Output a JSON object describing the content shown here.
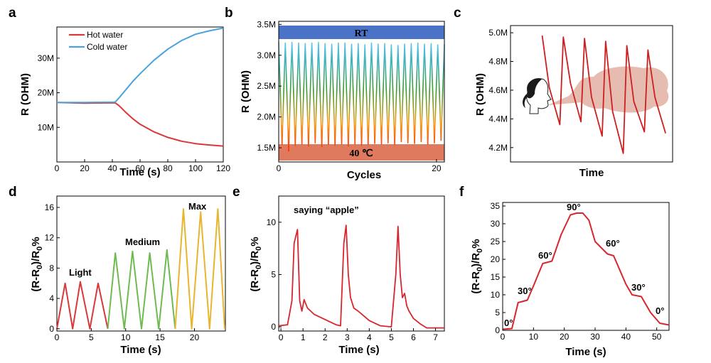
{
  "panels": {
    "a": "a",
    "b": "b",
    "c": "c",
    "d": "d",
    "e": "e",
    "f": "f"
  },
  "chart_data": [
    {
      "id": "a",
      "type": "line",
      "xlabel": "Time (s)",
      "ylabel": "R (OHM)",
      "xlim": [
        0,
        120
      ],
      "ylim": [
        0,
        39
      ],
      "xticks": [
        0,
        20,
        40,
        60,
        80,
        100,
        120
      ],
      "yticks": [
        10,
        20,
        30
      ],
      "ytick_labels": [
        "10M",
        "20M",
        "30M"
      ],
      "legend_position": "top-left",
      "series": [
        {
          "name": "Hot water",
          "color": "#d9383a",
          "x": [
            0,
            20,
            42,
            45,
            50,
            55,
            60,
            70,
            80,
            90,
            100,
            110,
            120
          ],
          "y": [
            17.2,
            17.0,
            17.1,
            16.2,
            14.2,
            12.4,
            10.9,
            8.7,
            7.1,
            6.0,
            5.3,
            4.9,
            4.6
          ]
        },
        {
          "name": "Cold water",
          "color": "#4aa3dc",
          "x": [
            0,
            20,
            42,
            45,
            50,
            55,
            60,
            70,
            80,
            90,
            100,
            110,
            120
          ],
          "y": [
            17.2,
            17.2,
            17.3,
            18.6,
            21.0,
            23.4,
            25.5,
            29.4,
            32.6,
            35.1,
            36.9,
            37.9,
            38.7
          ]
        }
      ]
    },
    {
      "id": "b",
      "type": "line",
      "xlabel": "Cycles",
      "ylabel": "R (OHM)",
      "xlim": [
        0,
        21
      ],
      "ylim": [
        1.27,
        3.55
      ],
      "xticks": [
        0,
        20
      ],
      "yticks": [
        1.5,
        2.0,
        2.5,
        3.0,
        3.5
      ],
      "ytick_labels": [
        "1.5M",
        "2.0M",
        "2.5M",
        "3.0M",
        "3.5M"
      ],
      "bands": [
        {
          "label": "RT",
          "color": "#4a73c8",
          "range": [
            3.27,
            3.51
          ]
        },
        {
          "label": "40 ℃",
          "color": "#e07a5f",
          "range": [
            1.28,
            1.41
          ]
        }
      ],
      "series": [
        {
          "name": "",
          "cycles": 25,
          "high": 3.22,
          "low": 1.56,
          "x": [
            0,
            0.42,
            0.84,
            1.26,
            1.68,
            2.1,
            2.52,
            2.94,
            3.36,
            3.78,
            4.2,
            4.62,
            5.04,
            5.46,
            5.88,
            6.3,
            6.72,
            7.14,
            7.56,
            7.98,
            8.4,
            8.82,
            9.24,
            9.66,
            10.08,
            10.5,
            10.92,
            11.34,
            11.76,
            12.18,
            12.6,
            13.02,
            13.44,
            13.86,
            14.28,
            14.7,
            15.12,
            15.54,
            15.96,
            16.38,
            16.8,
            17.22,
            17.64,
            18.06,
            18.48,
            18.9,
            19.32,
            19.74,
            20.16,
            20.58,
            21.0
          ],
          "y": [
            3.22,
            1.55,
            3.2,
            1.45,
            3.21,
            1.54,
            3.2,
            1.56,
            3.19,
            1.53,
            3.2,
            1.58,
            3.21,
            1.52,
            3.19,
            1.55,
            3.18,
            1.54,
            3.2,
            1.56,
            3.2,
            1.53,
            3.18,
            1.56,
            3.19,
            1.54,
            3.17,
            1.55,
            3.2,
            1.57,
            3.18,
            1.56,
            3.19,
            1.58,
            3.17,
            1.55,
            3.16,
            1.6,
            3.18,
            1.58,
            3.19,
            1.57,
            3.2,
            1.6,
            3.18,
            1.56,
            3.19,
            1.58,
            3.17,
            1.62,
            3.18
          ]
        }
      ]
    },
    {
      "id": "c",
      "type": "line",
      "xlabel": "Time",
      "ylabel": "R (OHM)",
      "ylim": [
        4.1,
        5.05
      ],
      "yticks": [
        4.2,
        4.4,
        4.6,
        4.8,
        5.0
      ],
      "ytick_labels": [
        "4.2M",
        "4.4M",
        "4.6M",
        "4.8M",
        "5.0M"
      ],
      "series": [
        {
          "name": "",
          "color": "#cc2020",
          "x": [
            0,
            0.4,
            1.0,
            1.2,
            1.6,
            2.2,
            2.4,
            2.8,
            3.4,
            3.6,
            4.0,
            4.6,
            4.8,
            5.2,
            5.8,
            6.0,
            6.4,
            7.0
          ],
          "y": [
            4.98,
            4.62,
            4.36,
            4.97,
            4.65,
            4.38,
            4.96,
            4.55,
            4.28,
            4.94,
            4.45,
            4.16,
            4.91,
            4.52,
            4.31,
            4.88,
            4.55,
            4.3
          ]
        }
      ]
    },
    {
      "id": "d",
      "type": "line",
      "xlabel": "Time (s)",
      "ylabel": "(R-R0)/R0%",
      "xlim": [
        0,
        24.5
      ],
      "ylim": [
        -0.3,
        17.5
      ],
      "xticks": [
        0,
        5,
        10,
        15,
        20
      ],
      "yticks": [
        0,
        4,
        8,
        12,
        16
      ],
      "annotations": [
        "Light",
        "Medium",
        "Max"
      ],
      "series": [
        {
          "name": "Light",
          "color": "#d9383a",
          "x": [
            0,
            1.2,
            2.3,
            3.4,
            4.8,
            6.0,
            7.4
          ],
          "y": [
            0,
            6.0,
            0,
            6.2,
            0,
            6.0,
            0
          ]
        },
        {
          "name": "Medium",
          "color": "#6dbb4f",
          "x": [
            7.4,
            8.5,
            9.8,
            11.0,
            12.3,
            13.5,
            14.8,
            16.0,
            17.2
          ],
          "y": [
            0,
            10.0,
            0,
            10.2,
            0,
            10.0,
            0,
            10.4,
            0
          ]
        },
        {
          "name": "Max",
          "color": "#e7b52e",
          "x": [
            17.2,
            18.4,
            19.6,
            20.9,
            22.2,
            23.4,
            24.4
          ],
          "y": [
            0,
            15.8,
            0,
            15.4,
            0,
            15.8,
            0
          ]
        }
      ]
    },
    {
      "id": "e",
      "type": "line",
      "xlabel": "Time (s)",
      "ylabel": "(R-R0)/R0%",
      "xlim": [
        -0.1,
        7.4
      ],
      "ylim": [
        -0.4,
        12.5
      ],
      "xticks": [
        0,
        1,
        2,
        3,
        4,
        5,
        6,
        7
      ],
      "yticks": [
        0,
        5,
        10
      ],
      "annotations": [
        "saying “apple”"
      ],
      "series": [
        {
          "name": "",
          "color": "#d8262e",
          "x": [
            -0.1,
            0.3,
            0.5,
            0.6,
            0.75,
            0.85,
            0.95,
            1.05,
            1.2,
            1.5,
            2.0,
            2.5,
            2.7,
            2.85,
            2.95,
            3.05,
            3.15,
            3.3,
            3.5,
            4.0,
            4.5,
            5.0,
            5.2,
            5.3,
            5.4,
            5.5,
            5.6,
            5.7,
            5.8,
            6.0,
            6.3,
            6.6,
            7.0,
            7.4
          ],
          "y": [
            0.1,
            0.2,
            2.5,
            8.0,
            9.3,
            2.5,
            1.5,
            2.6,
            1.8,
            1.2,
            0.7,
            0.2,
            0.1,
            8.0,
            9.7,
            5.0,
            2.8,
            1.8,
            1.5,
            0.6,
            0.1,
            0.0,
            5.0,
            9.6,
            5.0,
            2.8,
            3.2,
            2.0,
            1.5,
            0.8,
            0.3,
            -0.1,
            -0.1,
            -0.1
          ]
        }
      ]
    },
    {
      "id": "f",
      "type": "line",
      "xlabel": "Time (s)",
      "ylabel": "(R-R0)/R0%",
      "xlim": [
        0,
        54
      ],
      "ylim": [
        0,
        36
      ],
      "xticks": [
        0,
        10,
        20,
        30,
        40,
        50
      ],
      "yticks": [
        0,
        5,
        10,
        15,
        20,
        25,
        30,
        35
      ],
      "annotations": [
        "0°",
        "30°",
        "60°",
        "90°",
        "60°",
        "30°",
        "0°"
      ],
      "series": [
        {
          "name": "",
          "color": "#d8262e",
          "x": [
            0,
            3,
            5,
            8,
            10,
            13,
            16,
            19,
            22,
            24,
            26,
            28,
            30,
            34,
            36,
            40,
            42,
            45,
            48,
            51,
            54
          ],
          "y": [
            0.3,
            0.5,
            7.8,
            8.5,
            12.5,
            18.8,
            19.5,
            27.0,
            32.5,
            33.0,
            33.0,
            31.0,
            25.0,
            21.5,
            21.0,
            13.0,
            10.0,
            9.5,
            5.0,
            2.0,
            1.5
          ]
        }
      ]
    }
  ]
}
